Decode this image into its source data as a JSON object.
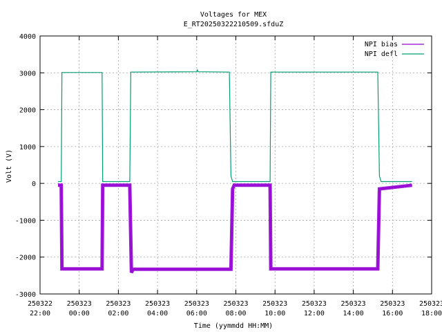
{
  "chart_data": {
    "type": "line",
    "title": "Voltages for MEX",
    "subtitle": "E_RT20250322210509.sfduZ",
    "xlabel": "Time (yymmdd HH:MM)",
    "ylabel": "Volt (V)",
    "xlim": [
      "2025-03-22 22:00",
      "2025-03-23 18:00"
    ],
    "ylim": [
      -3000,
      4000
    ],
    "grid": true,
    "legend_position": "top-right",
    "x_ticks": [
      {
        "value": "2025-03-22 22:00",
        "date": "250322",
        "time": "22:00"
      },
      {
        "value": "2025-03-23 00:00",
        "date": "250323",
        "time": "00:00"
      },
      {
        "value": "2025-03-23 02:00",
        "date": "250323",
        "time": "02:00"
      },
      {
        "value": "2025-03-23 04:00",
        "date": "250323",
        "time": "04:00"
      },
      {
        "value": "2025-03-23 06:00",
        "date": "250323",
        "time": "06:00"
      },
      {
        "value": "2025-03-23 08:00",
        "date": "250323",
        "time": "08:00"
      },
      {
        "value": "2025-03-23 10:00",
        "date": "250323",
        "time": "10:00"
      },
      {
        "value": "2025-03-23 12:00",
        "date": "250323",
        "time": "12:00"
      },
      {
        "value": "2025-03-23 14:00",
        "date": "250323",
        "time": "14:00"
      },
      {
        "value": "2025-03-23 16:00",
        "date": "250323",
        "time": "16:00"
      },
      {
        "value": "2025-03-23 18:00",
        "date": "250323",
        "time": "18:00"
      }
    ],
    "y_ticks": [
      -3000,
      -2000,
      -1000,
      0,
      1000,
      2000,
      3000,
      4000
    ],
    "series": [
      {
        "name": "NPI bias",
        "color": "#9400d3",
        "points": [
          [
            "2025-03-22 22:55",
            -50
          ],
          [
            "2025-03-22 23:05",
            -50
          ],
          [
            "2025-03-22 23:07",
            -2320
          ],
          [
            "2025-03-23 01:10",
            -2320
          ],
          [
            "2025-03-23 01:12",
            -50
          ],
          [
            "2025-03-23 02:35",
            -50
          ],
          [
            "2025-03-23 02:40",
            -2420
          ],
          [
            "2025-03-23 02:45",
            -2330
          ],
          [
            "2025-03-23 07:45",
            -2330
          ],
          [
            "2025-03-23 07:50",
            -150
          ],
          [
            "2025-03-23 07:55",
            -50
          ],
          [
            "2025-03-23 09:45",
            -50
          ],
          [
            "2025-03-23 09:47",
            -2320
          ],
          [
            "2025-03-23 15:15",
            -2320
          ],
          [
            "2025-03-23 15:20",
            -150
          ],
          [
            "2025-03-23 17:00",
            -50
          ]
        ]
      },
      {
        "name": "NPI defl",
        "color": "#009e73",
        "points": [
          [
            "2025-03-22 22:55",
            50
          ],
          [
            "2025-03-22 23:05",
            50
          ],
          [
            "2025-03-22 23:07",
            3010
          ],
          [
            "2025-03-23 01:10",
            3010
          ],
          [
            "2025-03-23 01:12",
            50
          ],
          [
            "2025-03-23 02:35",
            50
          ],
          [
            "2025-03-23 02:38",
            3020
          ],
          [
            "2025-03-23 06:00",
            3030
          ],
          [
            "2025-03-23 06:02",
            3080
          ],
          [
            "2025-03-23 06:04",
            3030
          ],
          [
            "2025-03-23 07:40",
            3020
          ],
          [
            "2025-03-23 07:45",
            200
          ],
          [
            "2025-03-23 07:50",
            50
          ],
          [
            "2025-03-23 09:45",
            50
          ],
          [
            "2025-03-23 09:47",
            3020
          ],
          [
            "2025-03-23 15:15",
            3020
          ],
          [
            "2025-03-23 15:20",
            200
          ],
          [
            "2025-03-23 15:25",
            50
          ],
          [
            "2025-03-23 17:00",
            50
          ]
        ]
      }
    ]
  }
}
